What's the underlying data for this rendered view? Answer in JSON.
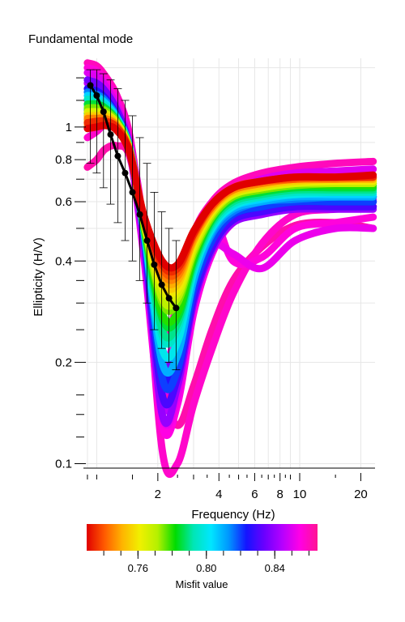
{
  "chart_data": {
    "type": "line",
    "title": "Fundamental mode",
    "xlabel": "Frequency (Hz)",
    "ylabel": "Ellipticity (H/V)",
    "x_scale": "log",
    "y_scale": "log",
    "xlim": [
      0.86,
      23.5
    ],
    "ylim": [
      0.097,
      1.6
    ],
    "x_ticks": [
      {
        "value": 2,
        "label": "2"
      },
      {
        "value": 4,
        "label": "4"
      },
      {
        "value": 6,
        "label": "6"
      },
      {
        "value": 8,
        "label": "8"
      },
      {
        "value": 10,
        "label": "10"
      },
      {
        "value": 20,
        "label": "20"
      }
    ],
    "y_ticks": [
      {
        "value": 0.1,
        "label": "0.1"
      },
      {
        "value": 0.2,
        "label": "0.2"
      },
      {
        "value": 0.4,
        "label": "0.4"
      },
      {
        "value": 0.6,
        "label": "0.6"
      },
      {
        "value": 0.8,
        "label": "0.8"
      },
      {
        "value": 1.0,
        "label": "1"
      }
    ],
    "grid": true,
    "colorbar": {
      "label": "Misfit value",
      "range": [
        0.73,
        0.865
      ],
      "ticks": [
        {
          "value": 0.76,
          "label": "0.76"
        },
        {
          "value": 0.8,
          "label": "0.80"
        },
        {
          "value": 0.84,
          "label": "0.84"
        }
      ],
      "colors": [
        "#e00000",
        "#ff5a00",
        "#ffb400",
        "#f0f000",
        "#b4f000",
        "#00dc00",
        "#00e6b4",
        "#00e6ff",
        "#0096ff",
        "#1414ff",
        "#6a00ff",
        "#b400ff",
        "#ff00e6",
        "#ff1493"
      ]
    },
    "measured": {
      "x": [
        0.93,
        1.0,
        1.08,
        1.17,
        1.27,
        1.38,
        1.5,
        1.63,
        1.77,
        1.92,
        2.09,
        2.27,
        2.46
      ],
      "y": [
        1.33,
        1.24,
        1.11,
        0.95,
        0.82,
        0.73,
        0.64,
        0.55,
        0.46,
        0.39,
        0.34,
        0.31,
        0.29
      ],
      "err_low": [
        0.78,
        0.73,
        0.66,
        0.59,
        0.52,
        0.46,
        0.4,
        0.35,
        0.3,
        0.25,
        0.22,
        0.2,
        0.19
      ],
      "err_high": [
        1.48,
        1.48,
        1.44,
        1.38,
        1.3,
        1.2,
        1.08,
        0.93,
        0.78,
        0.64,
        0.56,
        0.5,
        0.46
      ]
    },
    "models": [
      {
        "misfit": 0.862,
        "y": [
          0.76,
          0.8,
          0.86,
          0.88,
          0.82,
          0.5,
          0.18,
          0.13,
          0.17,
          0.25,
          0.35,
          0.44,
          0.51,
          0.52,
          0.5
        ]
      },
      {
        "misfit": 0.86,
        "y": [
          1.55,
          1.52,
          1.42,
          1.25,
          0.95,
          0.5,
          0.24,
          0.3,
          0.48,
          0.6,
          0.68,
          0.73,
          0.76,
          0.78,
          0.79
        ]
      },
      {
        "misfit": 0.858,
        "y": [
          0.93,
          0.97,
          1.02,
          1.02,
          0.88,
          0.5,
          0.11,
          0.1,
          0.15,
          0.22,
          0.32,
          0.45,
          0.55,
          0.57,
          0.58
        ]
      },
      {
        "misfit": 0.856,
        "y": [
          1.5,
          1.47,
          1.38,
          1.2,
          0.9,
          0.47,
          0.2,
          0.26,
          0.43,
          0.55,
          0.4,
          0.41,
          0.5,
          0.52,
          0.54
        ]
      },
      {
        "misfit": 0.855,
        "y": [
          1.2,
          1.18,
          1.13,
          1.05,
          0.85,
          0.42,
          0.13,
          0.15,
          0.28,
          0.42,
          0.52,
          0.56,
          0.58,
          0.6,
          0.61
        ]
      },
      {
        "misfit": 0.852,
        "y": [
          1.05,
          1.08,
          1.1,
          1.04,
          0.85,
          0.46,
          0.14,
          0.16,
          0.3,
          0.44,
          0.42,
          0.38,
          0.46,
          0.5,
          0.5
        ]
      },
      {
        "misfit": 0.85,
        "y": [
          1.45,
          1.42,
          1.33,
          1.16,
          0.9,
          0.48,
          0.17,
          0.22,
          0.4,
          0.55,
          0.64,
          0.7,
          0.73,
          0.74,
          0.75
        ]
      },
      {
        "misfit": 0.845,
        "y": [
          1.35,
          1.32,
          1.26,
          1.12,
          0.86,
          0.44,
          0.15,
          0.19,
          0.36,
          0.5,
          0.59,
          0.63,
          0.65,
          0.66,
          0.66
        ]
      },
      {
        "misfit": 0.84,
        "y": [
          1.0,
          1.02,
          1.04,
          1.0,
          0.84,
          0.48,
          0.14,
          0.17,
          0.3,
          0.43,
          0.52,
          0.55,
          0.57,
          0.57,
          0.57
        ]
      },
      {
        "misfit": 0.835,
        "y": [
          1.38,
          1.35,
          1.28,
          1.13,
          0.88,
          0.5,
          0.2,
          0.23,
          0.38,
          0.5,
          0.57,
          0.6,
          0.61,
          0.62,
          0.62
        ]
      },
      {
        "misfit": 0.83,
        "y": [
          1.08,
          1.1,
          1.1,
          1.04,
          0.86,
          0.48,
          0.16,
          0.18,
          0.31,
          0.44,
          0.53,
          0.56,
          0.58,
          0.58,
          0.58
        ]
      },
      {
        "misfit": 0.825,
        "y": [
          1.3,
          1.28,
          1.22,
          1.09,
          0.87,
          0.5,
          0.19,
          0.2,
          0.34,
          0.47,
          0.55,
          0.58,
          0.6,
          0.6,
          0.6
        ]
      },
      {
        "misfit": 0.82,
        "y": [
          1.12,
          1.13,
          1.12,
          1.05,
          0.87,
          0.5,
          0.18,
          0.19,
          0.33,
          0.46,
          0.55,
          0.58,
          0.6,
          0.6,
          0.6
        ]
      },
      {
        "misfit": 0.815,
        "y": [
          1.27,
          1.25,
          1.2,
          1.08,
          0.87,
          0.5,
          0.2,
          0.21,
          0.35,
          0.48,
          0.56,
          0.6,
          0.61,
          0.62,
          0.62
        ]
      },
      {
        "misfit": 0.81,
        "y": [
          1.17,
          1.17,
          1.15,
          1.06,
          0.87,
          0.5,
          0.2,
          0.21,
          0.35,
          0.49,
          0.57,
          0.6,
          0.62,
          0.62,
          0.62
        ]
      },
      {
        "misfit": 0.805,
        "y": [
          1.24,
          1.23,
          1.18,
          1.07,
          0.87,
          0.5,
          0.22,
          0.23,
          0.37,
          0.5,
          0.58,
          0.61,
          0.63,
          0.63,
          0.63
        ]
      },
      {
        "misfit": 0.8,
        "y": [
          1.16,
          1.16,
          1.14,
          1.05,
          0.87,
          0.51,
          0.22,
          0.23,
          0.37,
          0.5,
          0.58,
          0.62,
          0.63,
          0.64,
          0.64
        ]
      },
      {
        "misfit": 0.795,
        "y": [
          1.21,
          1.2,
          1.16,
          1.06,
          0.87,
          0.5,
          0.24,
          0.25,
          0.38,
          0.51,
          0.59,
          0.62,
          0.64,
          0.64,
          0.64
        ]
      },
      {
        "misfit": 0.79,
        "y": [
          1.13,
          1.13,
          1.12,
          1.04,
          0.86,
          0.51,
          0.25,
          0.26,
          0.39,
          0.52,
          0.6,
          0.63,
          0.65,
          0.65,
          0.65
        ]
      },
      {
        "misfit": 0.785,
        "y": [
          1.17,
          1.17,
          1.14,
          1.05,
          0.86,
          0.51,
          0.27,
          0.27,
          0.4,
          0.53,
          0.61,
          0.64,
          0.66,
          0.66,
          0.66
        ]
      },
      {
        "misfit": 0.78,
        "y": [
          1.1,
          1.1,
          1.09,
          1.03,
          0.86,
          0.52,
          0.28,
          0.28,
          0.41,
          0.54,
          0.62,
          0.65,
          0.67,
          0.67,
          0.67
        ]
      },
      {
        "misfit": 0.775,
        "y": [
          1.14,
          1.14,
          1.12,
          1.04,
          0.86,
          0.52,
          0.3,
          0.3,
          0.42,
          0.54,
          0.62,
          0.65,
          0.67,
          0.68,
          0.68
        ]
      },
      {
        "misfit": 0.77,
        "y": [
          1.07,
          1.07,
          1.07,
          1.02,
          0.86,
          0.53,
          0.31,
          0.31,
          0.43,
          0.55,
          0.63,
          0.66,
          0.68,
          0.68,
          0.68
        ]
      },
      {
        "misfit": 0.765,
        "y": [
          1.11,
          1.11,
          1.1,
          1.03,
          0.86,
          0.53,
          0.33,
          0.32,
          0.44,
          0.56,
          0.63,
          0.66,
          0.68,
          0.69,
          0.69
        ]
      },
      {
        "misfit": 0.76,
        "y": [
          1.04,
          1.05,
          1.05,
          1.01,
          0.85,
          0.53,
          0.34,
          0.33,
          0.45,
          0.56,
          0.64,
          0.67,
          0.69,
          0.69,
          0.69
        ]
      },
      {
        "misfit": 0.755,
        "y": [
          1.08,
          1.08,
          1.08,
          1.02,
          0.85,
          0.54,
          0.35,
          0.34,
          0.46,
          0.57,
          0.64,
          0.67,
          0.69,
          0.7,
          0.7
        ]
      },
      {
        "misfit": 0.75,
        "y": [
          1.02,
          1.03,
          1.04,
          1.0,
          0.85,
          0.54,
          0.36,
          0.35,
          0.46,
          0.57,
          0.65,
          0.68,
          0.7,
          0.7,
          0.7
        ]
      },
      {
        "misfit": 0.745,
        "y": [
          1.06,
          1.06,
          1.06,
          1.01,
          0.85,
          0.54,
          0.37,
          0.36,
          0.47,
          0.58,
          0.65,
          0.68,
          0.7,
          0.7,
          0.71
        ]
      },
      {
        "misfit": 0.74,
        "y": [
          1.0,
          1.01,
          1.02,
          0.99,
          0.85,
          0.55,
          0.38,
          0.37,
          0.48,
          0.58,
          0.66,
          0.69,
          0.7,
          0.71,
          0.71
        ]
      },
      {
        "misfit": 0.735,
        "y": [
          1.03,
          1.04,
          1.04,
          1.0,
          0.85,
          0.55,
          0.39,
          0.38,
          0.48,
          0.59,
          0.66,
          0.69,
          0.71,
          0.71,
          0.71
        ]
      },
      {
        "misfit": 0.73,
        "y": [
          0.99,
          1.0,
          1.01,
          0.98,
          0.84,
          0.55,
          0.4,
          0.39,
          0.49,
          0.59,
          0.66,
          0.69,
          0.71,
          0.71,
          0.72
        ]
      }
    ],
    "model_x": [
      0.9,
      1.0,
      1.1,
      1.25,
      1.45,
      1.7,
      2.1,
      2.5,
      3.0,
      3.7,
      4.7,
      6.5,
      9.5,
      15.0,
      23.0
    ]
  }
}
